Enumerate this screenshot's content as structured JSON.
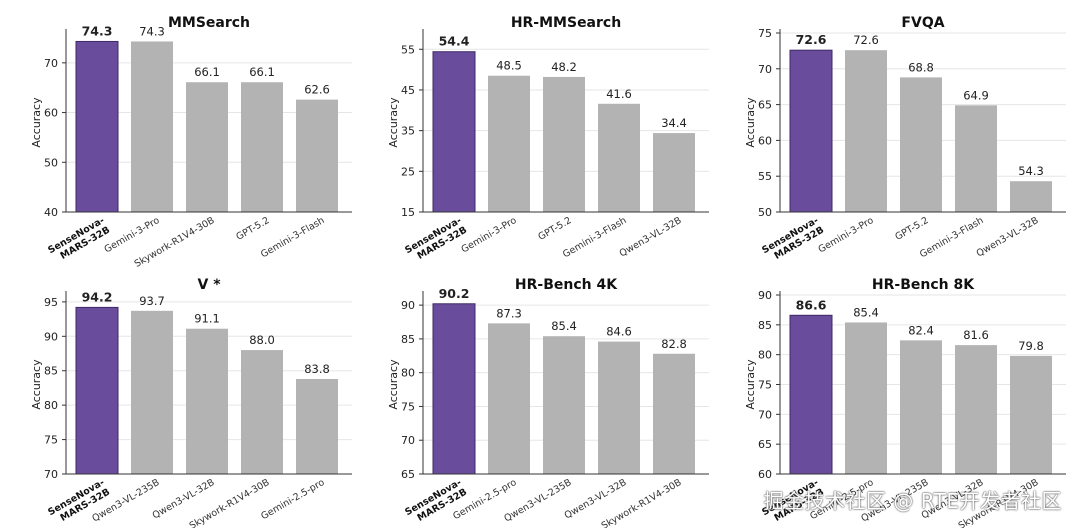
{
  "colors": {
    "highlight": "#6a4c9c",
    "other": "#b3b3b3",
    "grid": "#e6e6e6",
    "axis": "#333333"
  },
  "ylabel": "Accuracy",
  "chart_data": [
    {
      "type": "bar",
      "title": "MMSearch",
      "ylabel": "Accuracy",
      "ylim": [
        40,
        76
      ],
      "yticks": [
        40,
        50,
        60,
        70
      ],
      "categories": [
        "SenseNova-MARS-32B",
        "Gemini-3-Pro",
        "Skywork-R1V4-30B",
        "GPT-5.2",
        "Gemini-3-Flash"
      ],
      "values": [
        74.3,
        74.3,
        66.1,
        66.1,
        62.6
      ],
      "value_labels": [
        "74.3",
        "74.3",
        "66.1",
        "66.1",
        "62.6"
      ],
      "highlight_index": 0
    },
    {
      "type": "bar",
      "title": "HR-MMSearch",
      "ylabel": "Accuracy",
      "ylim": [
        15,
        59
      ],
      "yticks": [
        15,
        25,
        35,
        45,
        55
      ],
      "categories": [
        "SenseNova-MARS-32B",
        "Gemini-3-Pro",
        "GPT-5.2",
        "Gemini-3-Flash",
        "Qwen3-VL-32B"
      ],
      "values": [
        54.4,
        48.5,
        48.2,
        41.6,
        34.4
      ],
      "value_labels": [
        "54.4",
        "48.5",
        "48.2",
        "41.6",
        "34.4"
      ],
      "highlight_index": 0
    },
    {
      "type": "bar",
      "title": "FVQA",
      "ylabel": "Accuracy",
      "ylim": [
        50,
        75
      ],
      "yticks": [
        50,
        55,
        60,
        65,
        70,
        75
      ],
      "categories": [
        "SenseNova-MARS-32B",
        "Gemini-3-Pro",
        "GPT-5.2",
        "Gemini-3-Flash",
        "Qwen3-VL-32B"
      ],
      "values": [
        72.6,
        72.6,
        68.8,
        64.9,
        54.3
      ],
      "value_labels": [
        "72.6",
        "72.6",
        "68.8",
        "64.9",
        "54.3"
      ],
      "highlight_index": 0
    },
    {
      "type": "bar",
      "title": "V *",
      "ylabel": "Accuracy",
      "ylim": [
        70,
        96
      ],
      "yticks": [
        70,
        75,
        80,
        85,
        90,
        95
      ],
      "categories": [
        "SenseNova-MARS-32B",
        "Qwen3-VL-235B",
        "Qwen3-VL-32B",
        "Skywork-R1V4-30B",
        "Gemini-2.5-pro"
      ],
      "values": [
        94.2,
        93.7,
        91.1,
        88.0,
        83.8
      ],
      "value_labels": [
        "94.2",
        "93.7",
        "91.1",
        "88.0",
        "83.8"
      ],
      "highlight_index": 0
    },
    {
      "type": "bar",
      "title": "HR-Bench 4K",
      "ylabel": "Accuracy",
      "ylim": [
        65,
        91.5
      ],
      "yticks": [
        65,
        70,
        75,
        80,
        85,
        90
      ],
      "categories": [
        "SenseNova-MARS-32B",
        "Gemini-2.5-pro",
        "Qwen3-VL-235B",
        "Qwen3-VL-32B",
        "Skywork-R1V4-30B"
      ],
      "values": [
        90.2,
        87.3,
        85.4,
        84.6,
        82.8
      ],
      "value_labels": [
        "90.2",
        "87.3",
        "85.4",
        "84.6",
        "82.8"
      ],
      "highlight_index": 0
    },
    {
      "type": "bar",
      "title": "HR-Bench 8K",
      "ylabel": "Accuracy",
      "ylim": [
        60,
        90
      ],
      "yticks": [
        60,
        65,
        70,
        75,
        80,
        85,
        90
      ],
      "categories": [
        "SenseNova-MARS-32B",
        "Gemini-2.5-pro",
        "Qwen3-VL-235B",
        "Qwen3-VL-32B",
        "Skywork-R1V4-30B"
      ],
      "values": [
        86.6,
        85.4,
        82.4,
        81.6,
        79.8
      ],
      "value_labels": [
        "86.6",
        "85.4",
        "82.4",
        "81.6",
        "79.8"
      ],
      "highlight_index": 0
    }
  ],
  "highlight_label_lines": [
    "SenseNova-",
    "MARS-32B"
  ],
  "watermark": "掘金技术社区 @ RTE开发者社区"
}
